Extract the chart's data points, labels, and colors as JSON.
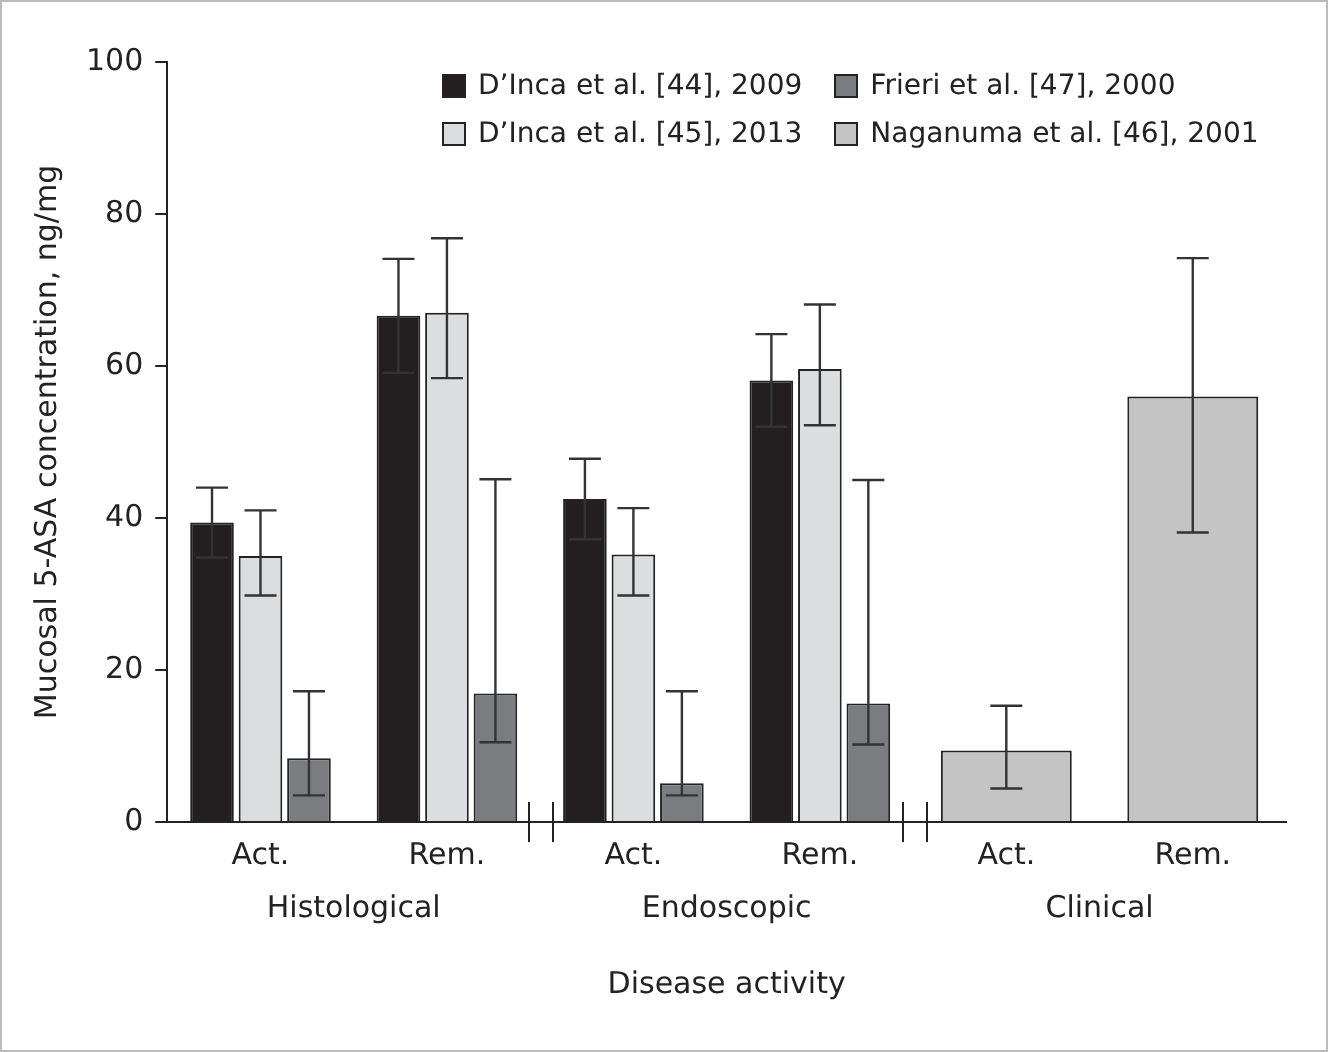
{
  "chart_data": {
    "type": "bar",
    "ylabel": "Mucosal 5-ASA concentration, ng/mg",
    "xlabel": "Disease activity",
    "categories": [
      "Act.",
      "Rem.",
      "Act.",
      "Rem.",
      "Act.",
      "Rem."
    ],
    "annotations": [
      "Histological",
      "Endoscopic",
      "Clinical"
    ],
    "ylim": [
      0,
      100
    ],
    "yticks": [
      0,
      20,
      40,
      60,
      80,
      100
    ],
    "grid": false,
    "legend": "top",
    "series": [
      {
        "name": "D’Inca et al. [44], 2009",
        "color": "#231f20",
        "values": [
          39.4,
          66.6,
          42.5,
          58.1,
          null,
          null
        ],
        "errors": [
          4.6,
          7.5,
          5.3,
          6.1,
          null,
          null
        ]
      },
      {
        "name": "D’Inca et al. [45], 2013",
        "color": "#dcdddf",
        "values": [
          35.0,
          67.0,
          35.2,
          59.6,
          null,
          null
        ],
        "errors": [
          [
            29.8,
            41.0
          ],
          [
            58.4,
            76.8
          ],
          [
            29.8,
            41.3
          ],
          [
            52.2,
            68.1
          ],
          null,
          null
        ]
      },
      {
        "name": "Frieri et al. [47], 2000",
        "color": "#7b7c7f",
        "values": [
          8.4,
          16.9,
          5.1,
          15.6,
          null,
          null
        ],
        "errors": [
          [
            3.5,
            17.2
          ],
          [
            10.5,
            45.1
          ],
          [
            3.5,
            17.2
          ],
          [
            10.2,
            45.0
          ],
          null,
          null
        ]
      },
      {
        "name": "Naganuma et al. [46], 2001",
        "color": "#c4c4c4",
        "values": [
          null,
          null,
          null,
          null,
          9.4,
          56.0
        ],
        "errors": [
          null,
          null,
          null,
          null,
          [
            4.4,
            15.3
          ],
          [
            38.1,
            74.2
          ]
        ]
      }
    ]
  }
}
